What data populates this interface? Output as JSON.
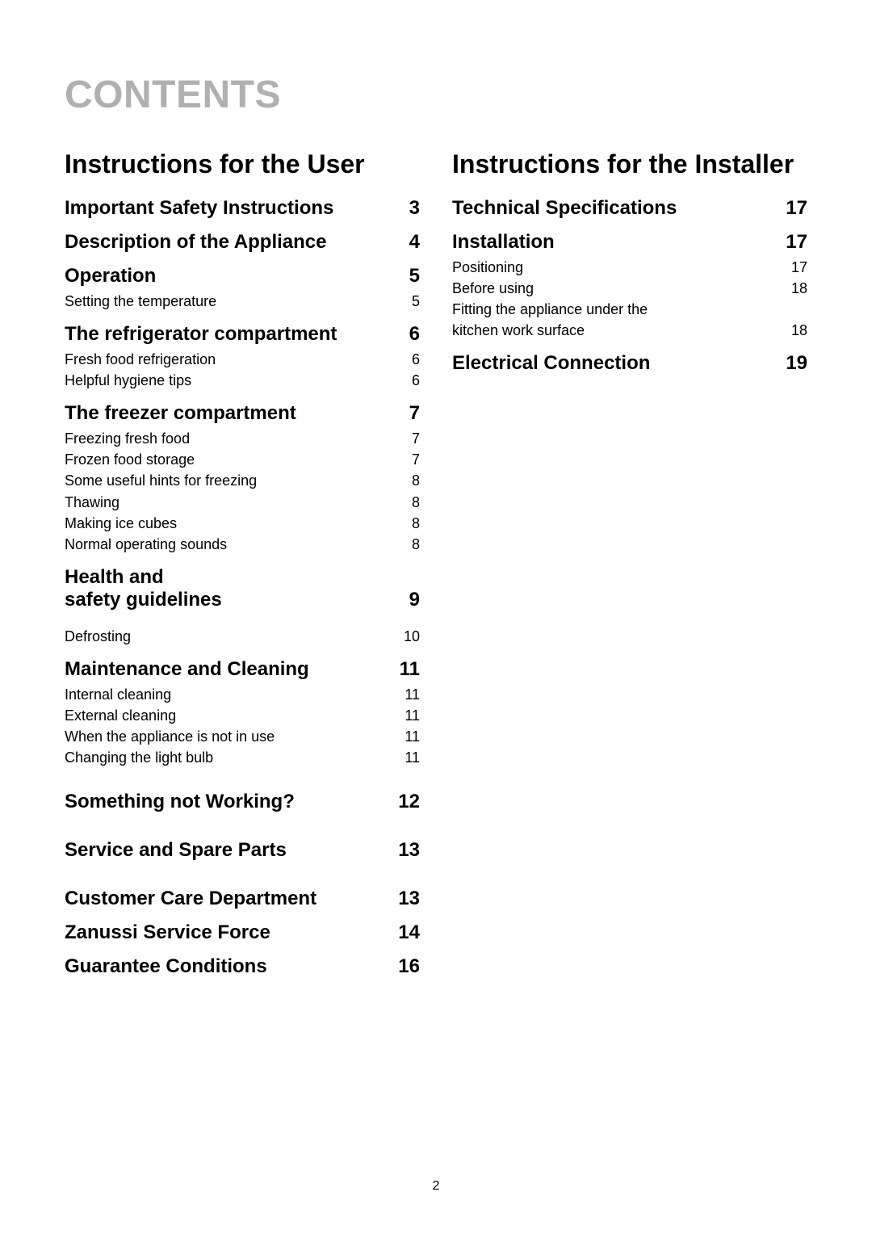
{
  "page": {
    "title": "CONTENTS",
    "footer_page_number": "2",
    "title_color": "#b0b0b0",
    "background_color": "#ffffff",
    "text_color": "#000000"
  },
  "left": {
    "heading": "Instructions for the User",
    "sections": [
      {
        "label": "Important Safety Instructions",
        "page": "3",
        "items": []
      },
      {
        "label": "Description of the Appliance",
        "page": "4",
        "items": []
      },
      {
        "label": "Operation",
        "page": "5",
        "items": [
          {
            "label": "Setting the temperature",
            "page": "5"
          }
        ]
      },
      {
        "label": "The refrigerator compartment",
        "page": "6",
        "items": [
          {
            "label": "Fresh food refrigeration",
            "page": "6"
          },
          {
            "label": "Helpful hygiene tips",
            "page": "6"
          }
        ]
      },
      {
        "label": "The freezer compartment",
        "page": "7",
        "items": [
          {
            "label": "Freezing fresh food",
            "page": "7"
          },
          {
            "label": "Frozen food storage",
            "page": "7"
          },
          {
            "label": "Some useful hints for freezing",
            "page": "8"
          },
          {
            "label": "Thawing",
            "page": "8"
          },
          {
            "label": "Making ice cubes",
            "page": "8"
          },
          {
            "label": "Normal operating sounds",
            "page": "8"
          }
        ]
      },
      {
        "label_line1": "Health and",
        "label_line2": "safety guidelines",
        "page": "9",
        "multiline": true,
        "items": [
          {
            "label": "Defrosting",
            "page": "10",
            "gap_before": true
          }
        ]
      },
      {
        "label": "Maintenance and Cleaning",
        "page": "11",
        "items": [
          {
            "label": "Internal cleaning",
            "page": "11"
          },
          {
            "label": "External cleaning",
            "page": "11"
          },
          {
            "label": "When the appliance is not in use",
            "page": "11"
          },
          {
            "label": "Changing the light bulb",
            "page": "11"
          }
        ]
      },
      {
        "label": "Something not Working?",
        "page": "12",
        "gap_before": true,
        "items": []
      },
      {
        "label": "Service and Spare Parts",
        "page": "13",
        "gap_before": true,
        "items": []
      },
      {
        "label": "Customer Care Department",
        "page": "13",
        "gap_before": true,
        "items": []
      },
      {
        "label": "Zanussi Service Force",
        "page": "14",
        "items": []
      },
      {
        "label": "Guarantee Conditions",
        "page": "16",
        "items": []
      }
    ]
  },
  "right": {
    "heading": "Instructions for the Installer",
    "sections": [
      {
        "label": "Technical Specifications",
        "page": "17",
        "items": []
      },
      {
        "label": "Installation",
        "page": "17",
        "items": [
          {
            "label": "Positioning",
            "page": "17"
          },
          {
            "label": "Before using",
            "page": "18"
          },
          {
            "label_line1": "Fitting the appliance under the",
            "label_line2": "kitchen work surface",
            "page": "18",
            "multiline": true
          }
        ]
      },
      {
        "label": "Electrical Connection",
        "page": "19",
        "items": []
      }
    ]
  }
}
